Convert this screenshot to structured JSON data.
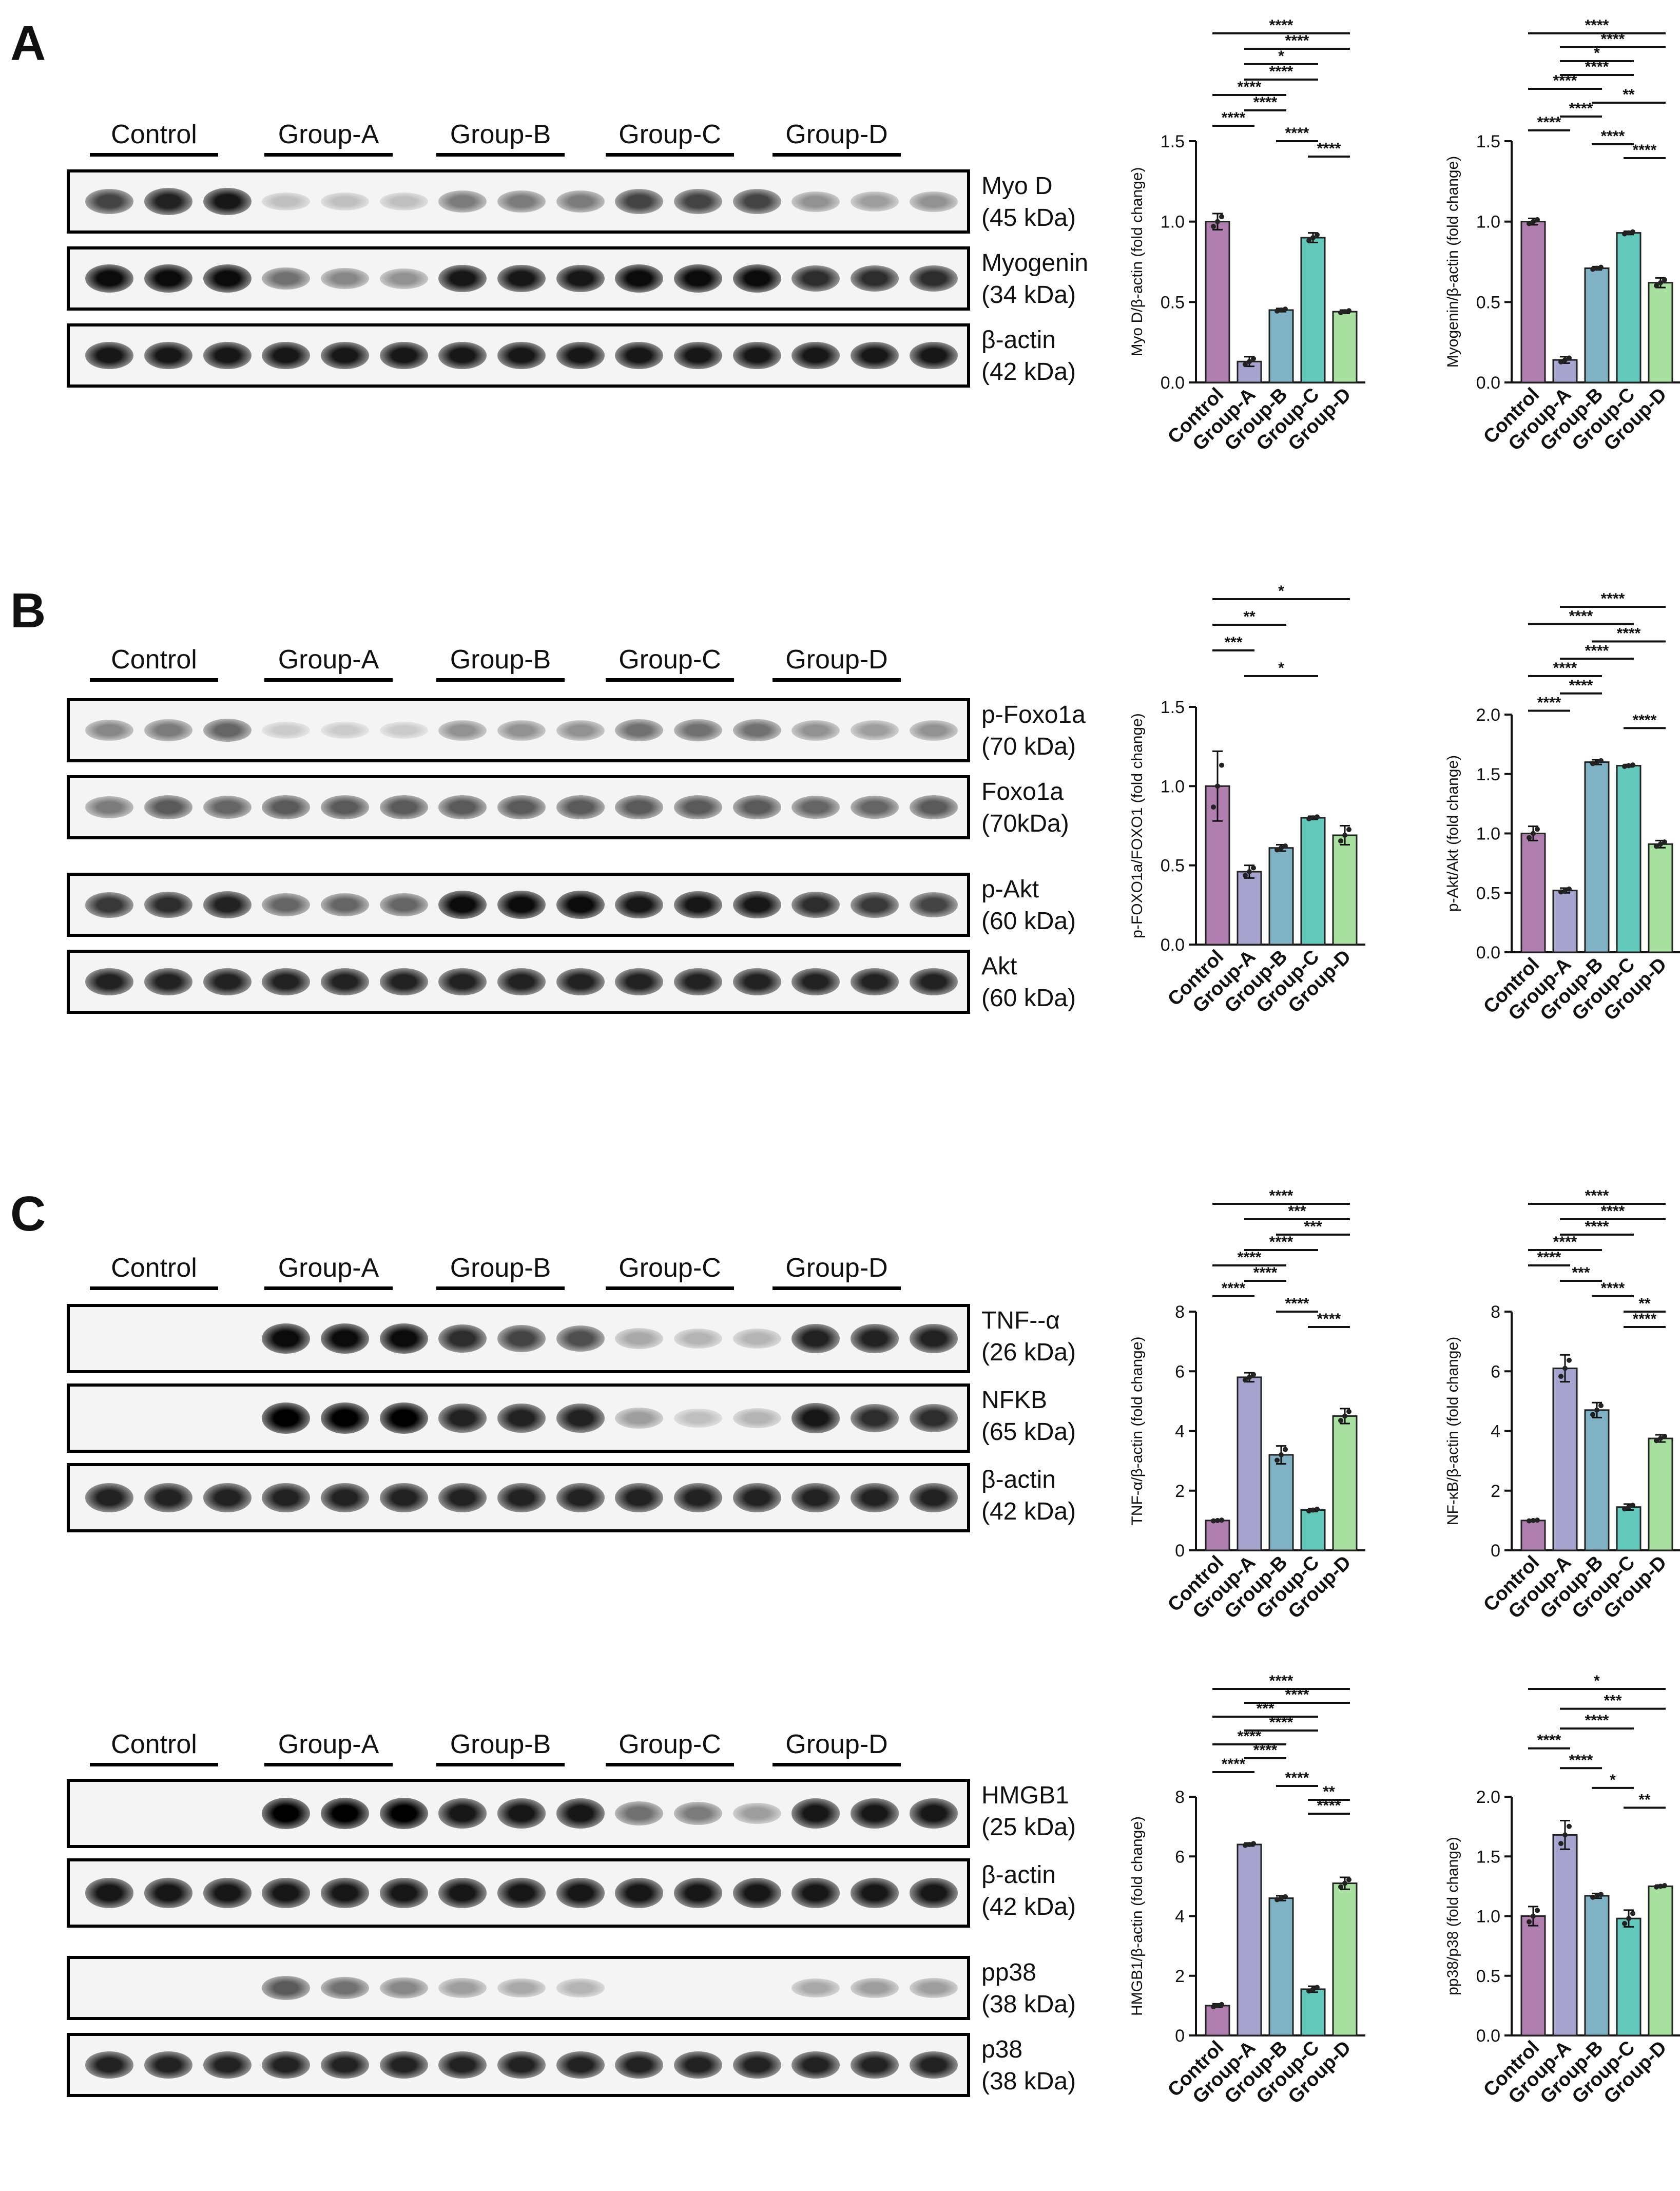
{
  "panels": {
    "A": {
      "letter": "A"
    },
    "B": {
      "letter": "B"
    },
    "C": {
      "letter": "C"
    }
  },
  "groups": [
    "Control",
    "Group-A",
    "Group-B",
    "Group-C",
    "Group-D"
  ],
  "blot_sets": [
    {
      "id": "A",
      "blots": [
        {
          "name": "Myo D",
          "size": "(45 kDa)",
          "intensity": [
            0.7,
            0.85,
            0.9,
            0.15,
            0.15,
            0.15,
            0.45,
            0.45,
            0.45,
            0.7,
            0.7,
            0.7,
            0.35,
            0.3,
            0.35
          ]
        },
        {
          "name": "Myogenin",
          "size": "(34 kDa)",
          "intensity": [
            0.95,
            0.95,
            0.95,
            0.5,
            0.4,
            0.35,
            0.9,
            0.9,
            0.9,
            0.95,
            0.95,
            0.95,
            0.8,
            0.8,
            0.8
          ]
        },
        {
          "name": "β-actin",
          "size": "(42 kDa)",
          "intensity": [
            0.9,
            0.9,
            0.9,
            0.9,
            0.9,
            0.9,
            0.9,
            0.9,
            0.9,
            0.9,
            0.9,
            0.9,
            0.9,
            0.9,
            0.9
          ]
        }
      ]
    },
    {
      "id": "B",
      "blots": [
        {
          "name": "p-Foxo1a",
          "size": "(70 kDa)",
          "intensity": [
            0.4,
            0.45,
            0.55,
            0.1,
            0.1,
            0.1,
            0.35,
            0.35,
            0.35,
            0.5,
            0.5,
            0.5,
            0.35,
            0.3,
            0.35
          ]
        },
        {
          "name": "Foxo1a",
          "size": "(70kDa)",
          "intensity": [
            0.45,
            0.6,
            0.55,
            0.6,
            0.6,
            0.6,
            0.6,
            0.6,
            0.6,
            0.6,
            0.6,
            0.6,
            0.55,
            0.55,
            0.6
          ]
        },
        {
          "name": "p-Akt",
          "size": "(60 kDa)",
          "intensity": [
            0.75,
            0.8,
            0.85,
            0.55,
            0.55,
            0.55,
            0.95,
            0.95,
            0.95,
            0.9,
            0.9,
            0.9,
            0.8,
            0.75,
            0.7
          ]
        },
        {
          "name": "Akt",
          "size": "(60 kDa)",
          "intensity": [
            0.85,
            0.85,
            0.85,
            0.85,
            0.85,
            0.85,
            0.85,
            0.85,
            0.85,
            0.85,
            0.85,
            0.85,
            0.85,
            0.85,
            0.85
          ]
        }
      ]
    },
    {
      "id": "C1",
      "blots": [
        {
          "name": "TNF--α",
          "size": "(26 kDa)",
          "intensity": [
            0.0,
            0.0,
            0.0,
            0.95,
            0.95,
            0.95,
            0.8,
            0.7,
            0.65,
            0.25,
            0.2,
            0.2,
            0.85,
            0.85,
            0.85
          ]
        },
        {
          "name": "NFKB",
          "size": "(65 kDa)",
          "intensity": [
            0.0,
            0.0,
            0.0,
            1.0,
            1.0,
            1.0,
            0.85,
            0.85,
            0.85,
            0.3,
            0.15,
            0.2,
            0.9,
            0.8,
            0.8
          ]
        },
        {
          "name": "β-actin",
          "size": "(42 kDa)",
          "intensity": [
            0.85,
            0.85,
            0.85,
            0.85,
            0.85,
            0.85,
            0.85,
            0.85,
            0.85,
            0.85,
            0.85,
            0.85,
            0.85,
            0.85,
            0.85
          ]
        }
      ]
    },
    {
      "id": "C2",
      "blots": [
        {
          "name": "HMGB1",
          "size": "(25 kDa)",
          "intensity": [
            0.0,
            0.0,
            0.0,
            1.0,
            1.0,
            1.0,
            0.9,
            0.9,
            0.9,
            0.5,
            0.45,
            0.3,
            0.9,
            0.9,
            0.9
          ]
        },
        {
          "name": "β-actin",
          "size": "(42 kDa)",
          "intensity": [
            0.9,
            0.9,
            0.9,
            0.9,
            0.9,
            0.9,
            0.9,
            0.9,
            0.9,
            0.9,
            0.9,
            0.9,
            0.9,
            0.9,
            0.9
          ]
        },
        {
          "name": "pp38",
          "size": "(38 kDa)",
          "intensity": [
            0.0,
            0.0,
            0.0,
            0.6,
            0.5,
            0.4,
            0.3,
            0.25,
            0.2,
            0.0,
            0.0,
            0.0,
            0.25,
            0.3,
            0.3
          ]
        },
        {
          "name": "p38",
          "size": "(38 kDa)",
          "intensity": [
            0.85,
            0.85,
            0.85,
            0.85,
            0.85,
            0.85,
            0.85,
            0.85,
            0.85,
            0.85,
            0.85,
            0.85,
            0.85,
            0.85,
            0.85
          ]
        }
      ]
    }
  ],
  "colors": {
    "bars": [
      "#b07fb0",
      "#a6a4cf",
      "#7fb2c4",
      "#63c9bb",
      "#a8e0a0"
    ],
    "ink": "#111111"
  },
  "chart_data": [
    {
      "id": "A1",
      "type": "bar",
      "categories": [
        "Control",
        "Group-A",
        "Group-B",
        "Group-C",
        "Group-D"
      ],
      "values": [
        1.0,
        0.13,
        0.45,
        0.9,
        0.44
      ],
      "errors": [
        0.05,
        0.03,
        0.01,
        0.03,
        0.01
      ],
      "ylabel": "Myo D/β-actin (fold change)",
      "ylim": [
        0,
        1.5
      ],
      "yticks": [
        "0.0",
        "0.5",
        "1.0",
        "1.5"
      ],
      "sig": [
        {
          "a": 0,
          "b": 4,
          "label": "****"
        },
        {
          "a": 1,
          "b": 4,
          "label": "****"
        },
        {
          "a": 1,
          "b": 3,
          "label": "*"
        },
        {
          "a": 1,
          "b": 3,
          "label": "****"
        },
        {
          "a": 0,
          "b": 2,
          "label": "****"
        },
        {
          "a": 1,
          "b": 2,
          "label": "****"
        },
        {
          "a": 0,
          "b": 1,
          "label": "****"
        },
        {
          "a": 2,
          "b": 3,
          "label": "****"
        },
        {
          "a": 3,
          "b": 4,
          "label": "****"
        }
      ]
    },
    {
      "id": "A2",
      "type": "bar",
      "categories": [
        "Control",
        "Group-A",
        "Group-B",
        "Group-C",
        "Group-D"
      ],
      "values": [
        1.0,
        0.14,
        0.71,
        0.93,
        0.62
      ],
      "errors": [
        0.02,
        0.02,
        0.01,
        0.01,
        0.03
      ],
      "ylabel": "Myogenin/β-actin (fold change)",
      "ylim": [
        0,
        1.5
      ],
      "yticks": [
        "0.0",
        "0.5",
        "1.0",
        "1.5"
      ],
      "sig": [
        {
          "a": 0,
          "b": 4,
          "label": "****"
        },
        {
          "a": 1,
          "b": 4,
          "label": "****"
        },
        {
          "a": 1,
          "b": 3,
          "label": "*"
        },
        {
          "a": 1,
          "b": 3,
          "label": "****"
        },
        {
          "a": 0,
          "b": 2,
          "label": "****"
        },
        {
          "a": 2,
          "b": 4,
          "label": "**"
        },
        {
          "a": 1,
          "b": 2,
          "label": "****"
        },
        {
          "a": 0,
          "b": 1,
          "label": "****"
        },
        {
          "a": 2,
          "b": 3,
          "label": "****"
        },
        {
          "a": 3,
          "b": 4,
          "label": "****"
        }
      ]
    },
    {
      "id": "B1",
      "type": "bar",
      "categories": [
        "Control",
        "Group-A",
        "Group-B",
        "Group-C",
        "Group-D"
      ],
      "values": [
        1.0,
        0.46,
        0.61,
        0.8,
        0.69
      ],
      "errors": [
        0.22,
        0.04,
        0.02,
        0.01,
        0.06
      ],
      "ylabel": "p-FOXO1a/FOXO1 (fold change)",
      "ylim": [
        0,
        1.5
      ],
      "yticks": [
        "0.0",
        "0.5",
        "1.0",
        "1.5"
      ],
      "sig": [
        {
          "a": 0,
          "b": 4,
          "label": "*"
        },
        {
          "a": 0,
          "b": 2,
          "label": "**"
        },
        {
          "a": 0,
          "b": 1,
          "label": "***"
        },
        {
          "a": 1,
          "b": 3,
          "label": "*"
        }
      ]
    },
    {
      "id": "B2",
      "type": "bar",
      "categories": [
        "Control",
        "Group-A",
        "Group-B",
        "Group-C",
        "Group-D"
      ],
      "values": [
        1.0,
        0.52,
        1.6,
        1.57,
        0.91
      ],
      "errors": [
        0.06,
        0.02,
        0.02,
        0.01,
        0.03
      ],
      "ylabel": "p-Akt/Akt (fold change)",
      "ylim": [
        0,
        2.0
      ],
      "yticks": [
        "0.0",
        "0.5",
        "1.0",
        "1.5",
        "2.0"
      ],
      "sig": [
        {
          "a": 1,
          "b": 4,
          "label": "****"
        },
        {
          "a": 0,
          "b": 3,
          "label": "****"
        },
        {
          "a": 2,
          "b": 4,
          "label": "****"
        },
        {
          "a": 1,
          "b": 3,
          "label": "****"
        },
        {
          "a": 0,
          "b": 2,
          "label": "****"
        },
        {
          "a": 1,
          "b": 2,
          "label": "****"
        },
        {
          "a": 0,
          "b": 1,
          "label": "****"
        },
        {
          "a": 3,
          "b": 4,
          "label": "****"
        }
      ]
    },
    {
      "id": "C1",
      "type": "bar",
      "categories": [
        "Control",
        "Group-A",
        "Group-B",
        "Group-C",
        "Group-D"
      ],
      "values": [
        1.0,
        5.8,
        3.2,
        1.35,
        4.5
      ],
      "errors": [
        0.02,
        0.15,
        0.3,
        0.05,
        0.25
      ],
      "ylabel": "TNF-α/β-actin (fold change)",
      "ylim": [
        0,
        8
      ],
      "yticks": [
        "0",
        "2",
        "4",
        "6",
        "8"
      ],
      "sig": [
        {
          "a": 0,
          "b": 4,
          "label": "****"
        },
        {
          "a": 1,
          "b": 4,
          "label": "***"
        },
        {
          "a": 2,
          "b": 4,
          "label": "***"
        },
        {
          "a": 1,
          "b": 3,
          "label": "****"
        },
        {
          "a": 0,
          "b": 2,
          "label": "****"
        },
        {
          "a": 1,
          "b": 2,
          "label": "****"
        },
        {
          "a": 0,
          "b": 1,
          "label": "****"
        },
        {
          "a": 2,
          "b": 3,
          "label": "****"
        },
        {
          "a": 3,
          "b": 4,
          "label": "****"
        }
      ]
    },
    {
      "id": "C2",
      "type": "bar",
      "categories": [
        "Control",
        "Group-A",
        "Group-B",
        "Group-C",
        "Group-D"
      ],
      "values": [
        1.0,
        6.1,
        4.7,
        1.45,
        3.75
      ],
      "errors": [
        0.02,
        0.45,
        0.25,
        0.1,
        0.12
      ],
      "ylabel": "NF-κB/β-actin (fold change)",
      "ylim": [
        0,
        8
      ],
      "yticks": [
        "0",
        "2",
        "4",
        "6",
        "8"
      ],
      "sig": [
        {
          "a": 0,
          "b": 4,
          "label": "****"
        },
        {
          "a": 1,
          "b": 4,
          "label": "****"
        },
        {
          "a": 1,
          "b": 3,
          "label": "****"
        },
        {
          "a": 0,
          "b": 2,
          "label": "****"
        },
        {
          "a": 0,
          "b": 1,
          "label": "****"
        },
        {
          "a": 1,
          "b": 2,
          "label": "***"
        },
        {
          "a": 2,
          "b": 3,
          "label": "****"
        },
        {
          "a": 3,
          "b": 4,
          "label": "**"
        },
        {
          "a": 3,
          "b": 4,
          "label": "****"
        }
      ]
    },
    {
      "id": "C3",
      "type": "bar",
      "categories": [
        "Control",
        "Group-A",
        "Group-B",
        "Group-C",
        "Group-D"
      ],
      "values": [
        1.0,
        6.4,
        4.6,
        1.55,
        5.1
      ],
      "errors": [
        0.06,
        0.05,
        0.08,
        0.1,
        0.2
      ],
      "ylabel": "HMGB1/β-actin (fold change)",
      "ylim": [
        0,
        8
      ],
      "yticks": [
        "0",
        "2",
        "4",
        "6",
        "8"
      ],
      "sig": [
        {
          "a": 0,
          "b": 4,
          "label": "****"
        },
        {
          "a": 1,
          "b": 4,
          "label": "****"
        },
        {
          "a": 0,
          "b": 3,
          "label": "***"
        },
        {
          "a": 1,
          "b": 3,
          "label": "****"
        },
        {
          "a": 0,
          "b": 2,
          "label": "****"
        },
        {
          "a": 1,
          "b": 2,
          "label": "****"
        },
        {
          "a": 0,
          "b": 1,
          "label": "****"
        },
        {
          "a": 2,
          "b": 3,
          "label": "****"
        },
        {
          "a": 3,
          "b": 4,
          "label": "**"
        },
        {
          "a": 3,
          "b": 4,
          "label": "****"
        }
      ]
    },
    {
      "id": "C4",
      "type": "bar",
      "categories": [
        "Control",
        "Group-A",
        "Group-B",
        "Group-C",
        "Group-D"
      ],
      "values": [
        1.0,
        1.68,
        1.17,
        0.98,
        1.25
      ],
      "errors": [
        0.08,
        0.12,
        0.02,
        0.07,
        0.01
      ],
      "ylabel": "pp38/p38 (fold change)",
      "ylim": [
        0,
        2.0
      ],
      "yticks": [
        "0.0",
        "0.5",
        "1.0",
        "1.5",
        "2.0"
      ],
      "sig": [
        {
          "a": 0,
          "b": 4,
          "label": "*"
        },
        {
          "a": 1,
          "b": 4,
          "label": "***"
        },
        {
          "a": 1,
          "b": 3,
          "label": "****"
        },
        {
          "a": 0,
          "b": 1,
          "label": "****"
        },
        {
          "a": 1,
          "b": 2,
          "label": "****"
        },
        {
          "a": 2,
          "b": 3,
          "label": "*"
        },
        {
          "a": 3,
          "b": 4,
          "label": "**"
        }
      ]
    }
  ]
}
